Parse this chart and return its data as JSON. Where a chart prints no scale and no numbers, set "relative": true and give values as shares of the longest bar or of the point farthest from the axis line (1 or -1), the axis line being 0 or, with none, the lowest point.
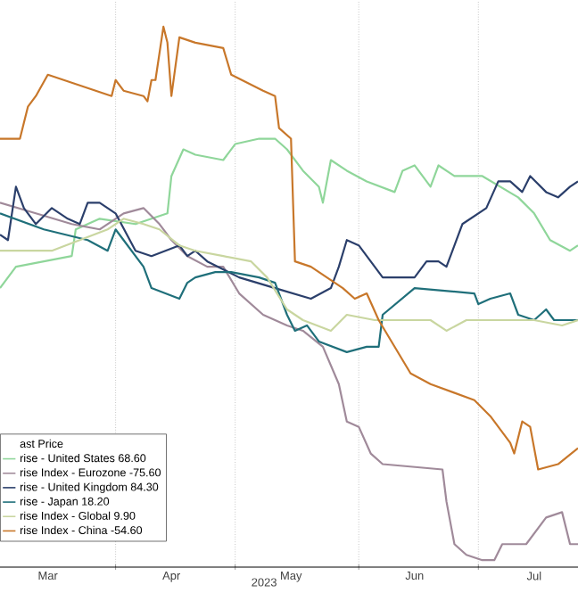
{
  "chart_data": {
    "type": "line",
    "relative": true,
    "xlabel": "2023",
    "legend_title": "ast Price",
    "legend": "bottom left",
    "grid": true,
    "marker": "none",
    "line_style": "solid",
    "xlim": [
      "2023-03-03",
      "2023-07-26"
    ],
    "xticks": [
      {
        "value": "2023-03-15",
        "label": "Mar"
      },
      {
        "value": "2023-04-01",
        "label": null
      },
      {
        "value": "2023-04-15",
        "label": "Apr"
      },
      {
        "value": "2023-05-01",
        "label": null
      },
      {
        "value": "2023-05-15",
        "label": "May"
      },
      {
        "value": "2023-06-01",
        "label": null
      },
      {
        "value": "2023-06-15",
        "label": "Jun"
      },
      {
        "value": "2023-07-01",
        "label": null
      },
      {
        "value": "2023-07-15",
        "label": "Jul"
      }
    ],
    "series": [
      {
        "name": "rise - United States 68.60",
        "color": "#8fd69a",
        "x": [
          "2023-03-03",
          "2023-03-07",
          "2023-03-21",
          "2023-03-22",
          "2023-03-28",
          "2023-04-06",
          "2023-04-14",
          "2023-04-15",
          "2023-04-18",
          "2023-04-21",
          "2023-04-28",
          "2023-05-01",
          "2023-05-07",
          "2023-05-11",
          "2023-05-14",
          "2023-05-18",
          "2023-05-22",
          "2023-05-23",
          "2023-05-25",
          "2023-05-29",
          "2023-06-03",
          "2023-06-10",
          "2023-06-12",
          "2023-06-15",
          "2023-06-19",
          "2023-06-21",
          "2023-06-25",
          "2023-07-02",
          "2023-07-11",
          "2023-07-15",
          "2023-07-19",
          "2023-07-24",
          "2023-07-26"
        ],
        "values": [
          0.51,
          0.55,
          0.57,
          0.62,
          0.64,
          0.63,
          0.65,
          0.72,
          0.77,
          0.76,
          0.75,
          0.78,
          0.79,
          0.79,
          0.77,
          0.73,
          0.7,
          0.67,
          0.75,
          0.73,
          0.71,
          0.69,
          0.73,
          0.74,
          0.7,
          0.74,
          0.72,
          0.72,
          0.68,
          0.65,
          0.6,
          0.58,
          0.59
        ]
      },
      {
        "name": "rise Index - Eurozone -75.60",
        "color": "#a08a9a",
        "x": [
          "2023-03-03",
          "2023-03-12",
          "2023-03-21",
          "2023-03-28",
          "2023-04-03",
          "2023-04-08",
          "2023-04-12",
          "2023-04-15",
          "2023-04-19",
          "2023-04-24",
          "2023-04-28",
          "2023-05-02",
          "2023-05-08",
          "2023-05-14",
          "2023-05-18",
          "2023-05-23",
          "2023-05-27",
          "2023-05-29",
          "2023-06-01",
          "2023-06-04",
          "2023-06-07",
          "2023-06-22",
          "2023-06-23",
          "2023-06-25",
          "2023-06-28",
          "2023-07-02",
          "2023-07-05",
          "2023-07-07",
          "2023-07-13",
          "2023-07-18",
          "2023-07-22",
          "2023-07-24",
          "2023-07-26"
        ],
        "values": [
          0.67,
          0.65,
          0.63,
          0.62,
          0.65,
          0.66,
          0.63,
          0.6,
          0.57,
          0.55,
          0.55,
          0.5,
          0.46,
          0.44,
          0.43,
          0.4,
          0.33,
          0.26,
          0.25,
          0.2,
          0.18,
          0.17,
          0.11,
          0.03,
          0.01,
          0,
          0,
          0.03,
          0.03,
          0.08,
          0.09,
          0.03,
          0.03
        ]
      },
      {
        "name": "rise - United Kingdom 84.30",
        "color": "#2b3f6b",
        "x": [
          "2023-03-03",
          "2023-03-05",
          "2023-03-07",
          "2023-03-09",
          "2023-03-12",
          "2023-03-16",
          "2023-03-20",
          "2023-03-23",
          "2023-03-25",
          "2023-03-28",
          "2023-04-01",
          "2023-04-06",
          "2023-04-10",
          "2023-04-17",
          "2023-04-19",
          "2023-04-21",
          "2023-04-24",
          "2023-05-02",
          "2023-05-11",
          "2023-05-20",
          "2023-05-25",
          "2023-05-27",
          "2023-05-29",
          "2023-06-01",
          "2023-06-03",
          "2023-06-07",
          "2023-06-15",
          "2023-06-18",
          "2023-06-21",
          "2023-06-23",
          "2023-06-27",
          "2023-07-03",
          "2023-07-06",
          "2023-07-09",
          "2023-07-12",
          "2023-07-14",
          "2023-07-18",
          "2023-07-21",
          "2023-07-24",
          "2023-07-26"
        ],
        "values": [
          0.61,
          0.6,
          0.7,
          0.66,
          0.63,
          0.66,
          0.64,
          0.63,
          0.67,
          0.67,
          0.65,
          0.58,
          0.57,
          0.59,
          0.57,
          0.58,
          0.56,
          0.53,
          0.51,
          0.49,
          0.51,
          0.55,
          0.6,
          0.59,
          0.57,
          0.53,
          0.53,
          0.56,
          0.56,
          0.55,
          0.63,
          0.66,
          0.71,
          0.71,
          0.69,
          0.72,
          0.69,
          0.68,
          0.7,
          0.71
        ]
      },
      {
        "name": "rise - Japan 18.20",
        "color": "#1f6f7a",
        "x": [
          "2023-03-03",
          "2023-03-14",
          "2023-03-25",
          "2023-03-30",
          "2023-04-01",
          "2023-04-03",
          "2023-04-08",
          "2023-04-10",
          "2023-04-17",
          "2023-04-19",
          "2023-04-21",
          "2023-04-26",
          "2023-04-30",
          "2023-05-07",
          "2023-05-11",
          "2023-05-14",
          "2023-05-16",
          "2023-05-19",
          "2023-05-22",
          "2023-05-29",
          "2023-06-03",
          "2023-06-06",
          "2023-06-07",
          "2023-06-15",
          "2023-06-30",
          "2023-07-01",
          "2023-07-04",
          "2023-07-09",
          "2023-07-11",
          "2023-07-15",
          "2023-07-18",
          "2023-07-20",
          "2023-07-26"
        ],
        "values": [
          0.65,
          0.62,
          0.6,
          0.58,
          0.62,
          0.6,
          0.55,
          0.51,
          0.49,
          0.52,
          0.53,
          0.54,
          0.54,
          0.53,
          0.52,
          0.46,
          0.43,
          0.44,
          0.41,
          0.39,
          0.4,
          0.4,
          0.46,
          0.51,
          0.5,
          0.48,
          0.49,
          0.5,
          0.46,
          0.45,
          0.47,
          0.45,
          0.45
        ]
      },
      {
        "name": "rise Index - Global 9.90",
        "color": "#c9d6a0",
        "x": [
          "2023-03-03",
          "2023-03-16",
          "2023-03-23",
          "2023-03-30",
          "2023-04-03",
          "2023-04-08",
          "2023-04-12",
          "2023-04-17",
          "2023-04-21",
          "2023-04-28",
          "2023-05-05",
          "2023-05-09",
          "2023-05-14",
          "2023-05-18",
          "2023-05-25",
          "2023-05-29",
          "2023-06-05",
          "2023-06-19",
          "2023-06-23",
          "2023-06-28",
          "2023-07-06",
          "2023-07-15",
          "2023-07-22",
          "2023-07-26"
        ],
        "values": [
          0.58,
          0.58,
          0.6,
          0.62,
          0.64,
          0.63,
          0.62,
          0.59,
          0.58,
          0.57,
          0.56,
          0.53,
          0.47,
          0.45,
          0.43,
          0.46,
          0.45,
          0.45,
          0.43,
          0.45,
          0.45,
          0.45,
          0.44,
          0.45
        ]
      },
      {
        "name": "rise Index - China -54.60",
        "color": "#c8772a",
        "x": [
          "2023-03-03",
          "2023-03-07",
          "2023-03-08",
          "2023-03-10",
          "2023-03-12",
          "2023-03-15",
          "2023-03-23",
          "2023-03-31",
          "2023-04-01",
          "2023-04-03",
          "2023-04-08",
          "2023-04-09",
          "2023-04-10",
          "2023-04-11",
          "2023-04-13",
          "2023-04-14",
          "2023-04-15",
          "2023-04-17",
          "2023-04-21",
          "2023-04-28",
          "2023-04-30",
          "2023-05-08",
          "2023-05-11",
          "2023-05-12",
          "2023-05-15",
          "2023-05-16",
          "2023-05-20",
          "2023-05-28",
          "2023-05-31",
          "2023-06-03",
          "2023-06-06",
          "2023-06-14",
          "2023-06-19",
          "2023-06-30",
          "2023-07-04",
          "2023-07-09",
          "2023-07-10",
          "2023-07-12",
          "2023-07-14",
          "2023-07-16",
          "2023-07-21",
          "2023-07-26"
        ],
        "values": [
          0.79,
          0.79,
          0.79,
          0.85,
          0.87,
          0.91,
          0.89,
          0.87,
          0.9,
          0.88,
          0.87,
          0.86,
          0.9,
          0.9,
          1.0,
          0.97,
          0.87,
          0.98,
          0.97,
          0.96,
          0.91,
          0.88,
          0.87,
          0.81,
          0.79,
          0.56,
          0.55,
          0.51,
          0.49,
          0.5,
          0.45,
          0.35,
          0.33,
          0.3,
          0.27,
          0.22,
          0.2,
          0.26,
          0.25,
          0.17,
          0.18,
          0.21
        ]
      }
    ]
  }
}
